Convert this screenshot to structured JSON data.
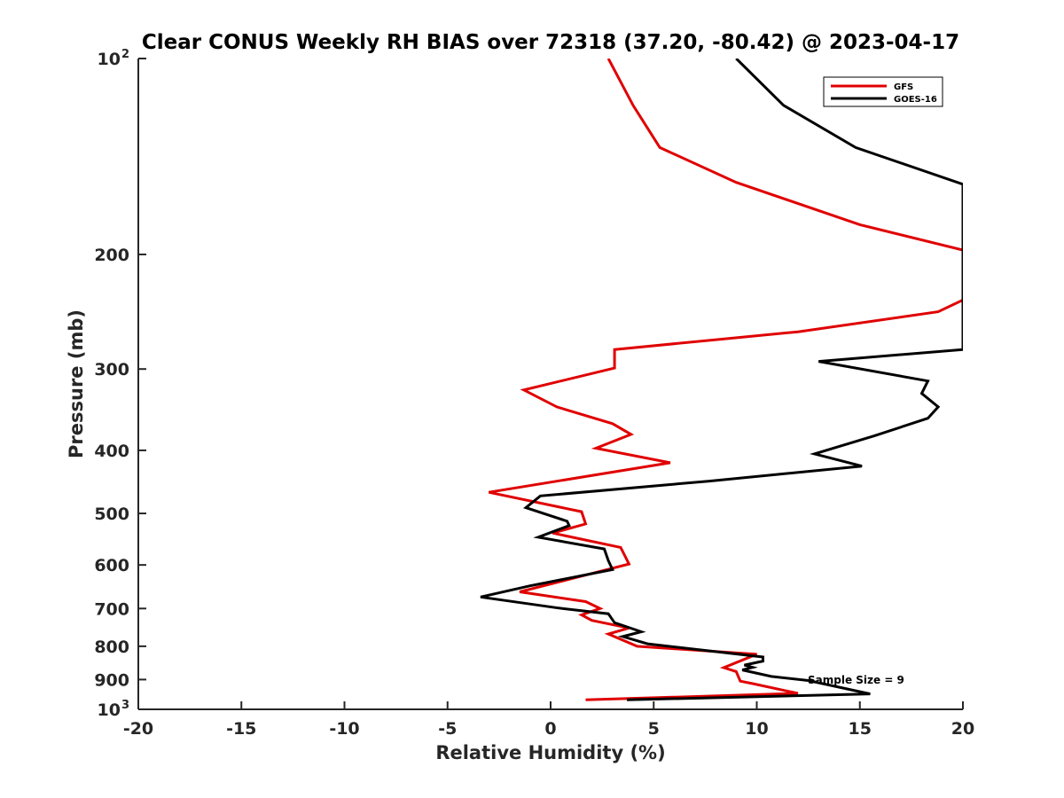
{
  "chart_data": {
    "type": "line",
    "title": "Clear CONUS Weekly RH BIAS over 72318 (37.20, -80.42) @ 2023-04-17",
    "xlabel": "Relative Humidity (%)",
    "ylabel": "Pressure (mb)",
    "xlim": [
      -20,
      20
    ],
    "ylim": [
      100,
      1000
    ],
    "yscale": "log",
    "y_direction": "reversed",
    "x_ticks": [
      "-20",
      "-15",
      "-10",
      "-5",
      "0",
      "5",
      "10",
      "15",
      "20"
    ],
    "y_ticks": [
      {
        "value": 100,
        "label": "10",
        "sup": "2"
      },
      {
        "value": 200,
        "label": "200",
        "sup": ""
      },
      {
        "value": 300,
        "label": "300",
        "sup": ""
      },
      {
        "value": 400,
        "label": "400",
        "sup": ""
      },
      {
        "value": 500,
        "label": "500",
        "sup": ""
      },
      {
        "value": 600,
        "label": "600",
        "sup": ""
      },
      {
        "value": 700,
        "label": "700",
        "sup": ""
      },
      {
        "value": 800,
        "label": "800",
        "sup": ""
      },
      {
        "value": 900,
        "label": "900",
        "sup": ""
      },
      {
        "value": 1000,
        "label": "10",
        "sup": "3"
      }
    ],
    "grid": false,
    "legend_position": "top-right",
    "annotation": "Sample Size = 9",
    "series": [
      {
        "name": "GFS",
        "color": "#e00000",
        "points": [
          [
            2.8,
            100
          ],
          [
            4.0,
            118
          ],
          [
            5.3,
            137
          ],
          [
            9.0,
            155
          ],
          [
            15.0,
            180
          ],
          [
            20.0,
            197
          ],
          [
            20.0,
            235
          ],
          [
            18.8,
            245
          ],
          [
            12.0,
            263
          ],
          [
            3.1,
            280
          ],
          [
            3.1,
            299
          ],
          [
            -1.3,
            323
          ],
          [
            0.3,
            343
          ],
          [
            3.0,
            364
          ],
          [
            3.9,
            378
          ],
          [
            2.2,
            397
          ],
          [
            5.8,
            418
          ],
          [
            -3.0,
            464
          ],
          [
            1.5,
            497
          ],
          [
            1.7,
            519
          ],
          [
            0.1,
            536
          ],
          [
            3.4,
            564
          ],
          [
            3.8,
            598
          ],
          [
            -1.5,
            660
          ],
          [
            1.7,
            683
          ],
          [
            2.4,
            700
          ],
          [
            1.5,
            716
          ],
          [
            2.0,
            730
          ],
          [
            3.8,
            750
          ],
          [
            2.8,
            766
          ],
          [
            4.2,
            800
          ],
          [
            10.0,
            823
          ],
          [
            8.4,
            863
          ],
          [
            9.0,
            875
          ],
          [
            9.2,
            905
          ],
          [
            9.8,
            913
          ],
          [
            12.0,
            945
          ],
          [
            1.7,
            967
          ]
        ]
      },
      {
        "name": "GOES-16",
        "color": "#000000",
        "points": [
          [
            9.0,
            100
          ],
          [
            11.3,
            118
          ],
          [
            14.8,
            137
          ],
          [
            20.0,
            156
          ],
          [
            20.0,
            280
          ],
          [
            13.0,
            292
          ],
          [
            18.3,
            313
          ],
          [
            18.0,
            327
          ],
          [
            18.8,
            343
          ],
          [
            18.3,
            357
          ],
          [
            15.7,
            380
          ],
          [
            12.8,
            405
          ],
          [
            15.1,
            423
          ],
          [
            7.7,
            446
          ],
          [
            -0.5,
            470
          ],
          [
            -1.2,
            490
          ],
          [
            0.8,
            514
          ],
          [
            0.9,
            522
          ],
          [
            -0.6,
            544
          ],
          [
            2.6,
            567
          ],
          [
            2.8,
            591
          ],
          [
            3.0,
            610
          ],
          [
            -1.0,
            646
          ],
          [
            -3.4,
            672
          ],
          [
            0.4,
            699
          ],
          [
            2.8,
            713
          ],
          [
            3.1,
            736
          ],
          [
            4.4,
            760
          ],
          [
            3.5,
            773
          ],
          [
            4.7,
            793
          ],
          [
            10.3,
            831
          ],
          [
            10.3,
            843
          ],
          [
            9.4,
            855
          ],
          [
            9.8,
            862
          ],
          [
            9.3,
            870
          ],
          [
            10.7,
            890
          ],
          [
            12.5,
            903
          ],
          [
            15.5,
            947
          ],
          [
            3.7,
            967
          ]
        ]
      }
    ]
  }
}
